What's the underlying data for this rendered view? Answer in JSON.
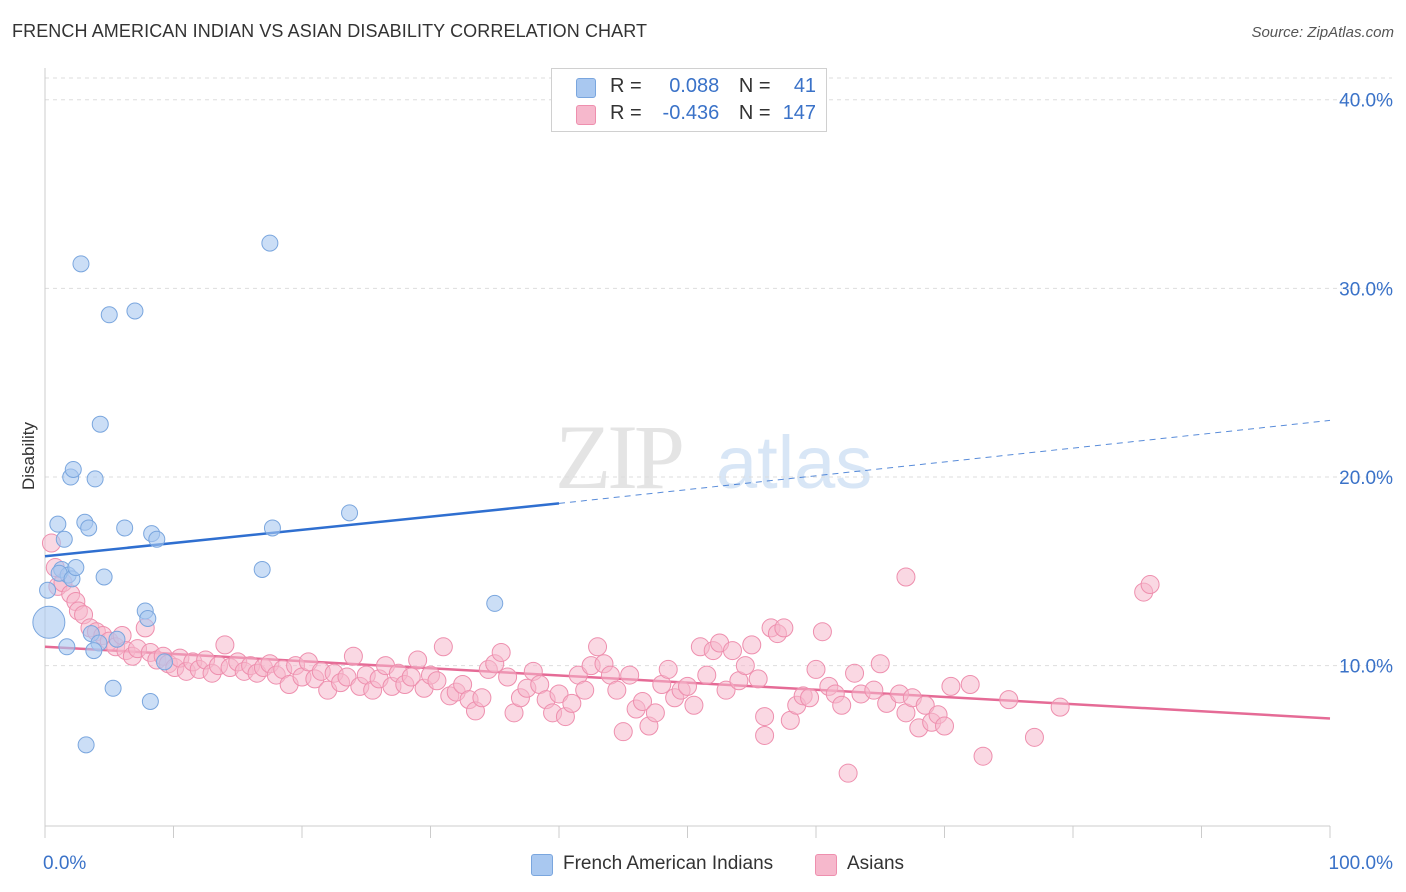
{
  "title": "FRENCH AMERICAN INDIAN VS ASIAN DISABILITY CORRELATION CHART",
  "source": "Source: ZipAtlas.com",
  "legend": {
    "rows": [
      {
        "r_label": "R =",
        "r_value": "0.088",
        "n_label": "N =",
        "n_value": "41"
      },
      {
        "r_label": "R =",
        "r_value": "-0.436",
        "n_label": "N =",
        "n_value": "147"
      }
    ]
  },
  "colors": {
    "blue_fill": "#a9c8f0",
    "blue_stroke": "#7aa6de",
    "blue_line": "#2f6fd0",
    "pink_fill": "#f6b8cc",
    "pink_stroke": "#ee8fae",
    "pink_line": "#e56b96",
    "tick_label": "#3a72c8",
    "grid": "#dddddd"
  },
  "chart_data": {
    "type": "scatter",
    "xlabel": "",
    "ylabel": "Disability",
    "xlim": [
      0,
      100
    ],
    "ylim": [
      1.5,
      42
    ],
    "x_tick_labels": [
      "0.0%",
      "100.0%"
    ],
    "y_ticks": [
      10,
      20,
      30,
      40
    ],
    "y_tick_labels": [
      "10.0%",
      "20.0%",
      "30.0%",
      "40.0%"
    ],
    "grid": true,
    "legend_position": "bottom",
    "series": [
      {
        "name": "French American Indians",
        "r": 0.088,
        "n": 41,
        "trend": {
          "x0": 0,
          "y0": 15.8,
          "x1": 40,
          "y1": 18.6,
          "dashed_to_x": 100,
          "dashed_y": 23.0
        },
        "points": [
          [
            0.3,
            12.3,
            16
          ],
          [
            0.2,
            14.0,
            8
          ],
          [
            1.0,
            17.5,
            8
          ],
          [
            1.5,
            16.7,
            8
          ],
          [
            1.3,
            15.1,
            8
          ],
          [
            1.8,
            14.8,
            8
          ],
          [
            1.1,
            14.9,
            8
          ],
          [
            2.1,
            14.6,
            8
          ],
          [
            2.4,
            15.2,
            8
          ],
          [
            2.0,
            20.0,
            8
          ],
          [
            2.2,
            20.4,
            8
          ],
          [
            2.8,
            31.3,
            8
          ],
          [
            3.1,
            17.6,
            8
          ],
          [
            3.4,
            17.3,
            8
          ],
          [
            3.9,
            19.9,
            8
          ],
          [
            4.3,
            22.8,
            8
          ],
          [
            4.6,
            14.7,
            8
          ],
          [
            5.0,
            28.6,
            8
          ],
          [
            7.0,
            28.8,
            8
          ],
          [
            6.2,
            17.3,
            8
          ],
          [
            8.3,
            17.0,
            8
          ],
          [
            8.7,
            16.7,
            8
          ],
          [
            7.8,
            12.9,
            8
          ],
          [
            8.0,
            12.5,
            8
          ],
          [
            3.6,
            11.7,
            8
          ],
          [
            4.2,
            11.2,
            8
          ],
          [
            5.6,
            11.4,
            8
          ],
          [
            1.7,
            11.0,
            8
          ],
          [
            3.8,
            10.8,
            8
          ],
          [
            9.3,
            10.2,
            8
          ],
          [
            5.3,
            8.8,
            8
          ],
          [
            8.2,
            8.1,
            8
          ],
          [
            3.2,
            5.8,
            8
          ],
          [
            17.5,
            32.4,
            8
          ],
          [
            17.7,
            17.3,
            8
          ],
          [
            16.9,
            15.1,
            8
          ],
          [
            23.7,
            18.1,
            8
          ],
          [
            35.0,
            13.3,
            8
          ]
        ]
      },
      {
        "name": "Asians",
        "r": -0.436,
        "n": 147,
        "trend": {
          "x0": 0,
          "y0": 11.0,
          "x1": 100,
          "y1": 7.2
        },
        "points": [
          [
            0.5,
            16.5,
            9
          ],
          [
            0.8,
            15.2,
            9
          ],
          [
            1.0,
            14.2,
            9
          ],
          [
            1.4,
            14.4,
            9
          ],
          [
            2.0,
            13.8,
            9
          ],
          [
            2.4,
            13.4,
            9
          ],
          [
            2.6,
            12.9,
            9
          ],
          [
            3.0,
            12.7,
            9
          ],
          [
            3.5,
            12.0,
            9
          ],
          [
            4.0,
            11.8,
            9
          ],
          [
            4.5,
            11.6,
            9
          ],
          [
            5.0,
            11.3,
            9
          ],
          [
            5.5,
            11.0,
            9
          ],
          [
            6.0,
            11.6,
            9
          ],
          [
            6.3,
            10.8,
            9
          ],
          [
            6.8,
            10.5,
            9
          ],
          [
            7.2,
            10.9,
            9
          ],
          [
            7.8,
            12.0,
            9
          ],
          [
            8.2,
            10.7,
            9
          ],
          [
            8.7,
            10.3,
            9
          ],
          [
            9.2,
            10.5,
            9
          ],
          [
            9.6,
            10.1,
            9
          ],
          [
            10.1,
            9.9,
            9
          ],
          [
            10.5,
            10.4,
            9
          ],
          [
            11.0,
            9.7,
            9
          ],
          [
            11.5,
            10.2,
            9
          ],
          [
            12.0,
            9.8,
            9
          ],
          [
            12.5,
            10.3,
            9
          ],
          [
            13.0,
            9.6,
            9
          ],
          [
            13.5,
            10.0,
            9
          ],
          [
            14.0,
            11.1,
            9
          ],
          [
            14.4,
            9.9,
            9
          ],
          [
            15.0,
            10.2,
            9
          ],
          [
            15.5,
            9.7,
            9
          ],
          [
            16.0,
            10.0,
            9
          ],
          [
            16.5,
            9.6,
            9
          ],
          [
            17.0,
            9.9,
            9
          ],
          [
            17.5,
            10.1,
            9
          ],
          [
            18.0,
            9.5,
            9
          ],
          [
            18.5,
            9.8,
            9
          ],
          [
            19.0,
            9.0,
            9
          ],
          [
            19.5,
            10.0,
            9
          ],
          [
            20.0,
            9.4,
            9
          ],
          [
            20.5,
            10.2,
            9
          ],
          [
            21.0,
            9.3,
            9
          ],
          [
            21.5,
            9.7,
            9
          ],
          [
            22.0,
            8.7,
            9
          ],
          [
            22.5,
            9.6,
            9
          ],
          [
            23.0,
            9.1,
            9
          ],
          [
            23.5,
            9.4,
            9
          ],
          [
            24.0,
            10.5,
            9
          ],
          [
            24.5,
            8.9,
            9
          ],
          [
            25.0,
            9.5,
            9
          ],
          [
            25.5,
            8.7,
            9
          ],
          [
            26.0,
            9.3,
            9
          ],
          [
            26.5,
            10.0,
            9
          ],
          [
            27.0,
            8.9,
            9
          ],
          [
            27.5,
            9.6,
            9
          ],
          [
            28.0,
            9.0,
            9
          ],
          [
            28.5,
            9.4,
            9
          ],
          [
            29.0,
            10.3,
            9
          ],
          [
            29.5,
            8.8,
            9
          ],
          [
            30.0,
            9.5,
            9
          ],
          [
            30.5,
            9.2,
            9
          ],
          [
            31.0,
            11.0,
            9
          ],
          [
            31.5,
            8.4,
            9
          ],
          [
            32.0,
            8.6,
            9
          ],
          [
            32.5,
            9.0,
            9
          ],
          [
            33.0,
            8.2,
            9
          ],
          [
            33.5,
            7.6,
            9
          ],
          [
            34.0,
            8.3,
            9
          ],
          [
            34.5,
            9.8,
            9
          ],
          [
            35.0,
            10.1,
            9
          ],
          [
            35.5,
            10.7,
            9
          ],
          [
            36.0,
            9.4,
            9
          ],
          [
            36.5,
            7.5,
            9
          ],
          [
            37.0,
            8.3,
            9
          ],
          [
            37.5,
            8.8,
            9
          ],
          [
            38.0,
            9.7,
            9
          ],
          [
            38.5,
            9.0,
            9
          ],
          [
            39.0,
            8.2,
            9
          ],
          [
            39.5,
            7.5,
            9
          ],
          [
            40.0,
            8.5,
            9
          ],
          [
            40.5,
            7.3,
            9
          ],
          [
            41.0,
            8.0,
            9
          ],
          [
            41.5,
            9.5,
            9
          ],
          [
            42.0,
            8.7,
            9
          ],
          [
            42.5,
            10.0,
            9
          ],
          [
            43.0,
            11.0,
            9
          ],
          [
            43.5,
            10.1,
            9
          ],
          [
            44.0,
            9.5,
            9
          ],
          [
            44.5,
            8.7,
            9
          ],
          [
            45.0,
            6.5,
            9
          ],
          [
            45.5,
            9.5,
            9
          ],
          [
            46.0,
            7.7,
            9
          ],
          [
            46.5,
            8.1,
            9
          ],
          [
            47.0,
            6.8,
            9
          ],
          [
            47.5,
            7.5,
            9
          ],
          [
            48.0,
            9.0,
            9
          ],
          [
            48.5,
            9.8,
            9
          ],
          [
            49.0,
            8.3,
            9
          ],
          [
            49.5,
            8.7,
            9
          ],
          [
            50.0,
            8.9,
            9
          ],
          [
            50.5,
            7.9,
            9
          ],
          [
            51.0,
            11.0,
            9
          ],
          [
            51.5,
            9.5,
            9
          ],
          [
            52.0,
            10.8,
            9
          ],
          [
            52.5,
            11.2,
            9
          ],
          [
            53.0,
            8.7,
            9
          ],
          [
            53.5,
            10.8,
            9
          ],
          [
            54.0,
            9.2,
            9
          ],
          [
            54.5,
            10.0,
            9
          ],
          [
            55.0,
            11.1,
            9
          ],
          [
            55.5,
            9.3,
            9
          ],
          [
            56.0,
            7.3,
            9
          ],
          [
            56.5,
            12.0,
            9
          ],
          [
            57.0,
            11.7,
            9
          ],
          [
            57.5,
            12.0,
            9
          ],
          [
            58.0,
            7.1,
            9
          ],
          [
            58.5,
            7.9,
            9
          ],
          [
            59.0,
            8.4,
            9
          ],
          [
            59.5,
            8.3,
            9
          ],
          [
            60.0,
            9.8,
            9
          ],
          [
            60.5,
            11.8,
            9
          ],
          [
            61.0,
            8.9,
            9
          ],
          [
            61.5,
            8.5,
            9
          ],
          [
            62.0,
            7.9,
            9
          ],
          [
            62.5,
            4.3,
            9
          ],
          [
            63.0,
            9.6,
            9
          ],
          [
            63.5,
            8.5,
            9
          ],
          [
            64.5,
            8.7,
            9
          ],
          [
            65.0,
            10.1,
            9
          ],
          [
            65.5,
            8.0,
            9
          ],
          [
            66.5,
            8.5,
            9
          ],
          [
            67.0,
            7.5,
            9
          ],
          [
            67.5,
            8.3,
            9
          ],
          [
            68.0,
            6.7,
            9
          ],
          [
            68.5,
            7.9,
            9
          ],
          [
            69.0,
            7.0,
            9
          ],
          [
            69.5,
            7.4,
            9
          ],
          [
            70.0,
            6.8,
            9
          ],
          [
            70.5,
            8.9,
            9
          ],
          [
            72.0,
            9.0,
            9
          ],
          [
            73.0,
            5.2,
            9
          ],
          [
            75.0,
            8.2,
            9
          ],
          [
            77.0,
            6.2,
            9
          ],
          [
            79.0,
            7.8,
            9
          ],
          [
            56.0,
            6.3,
            9
          ],
          [
            67.0,
            14.7,
            9
          ],
          [
            85.5,
            13.9,
            9
          ],
          [
            86.0,
            14.3,
            9
          ]
        ]
      }
    ]
  }
}
